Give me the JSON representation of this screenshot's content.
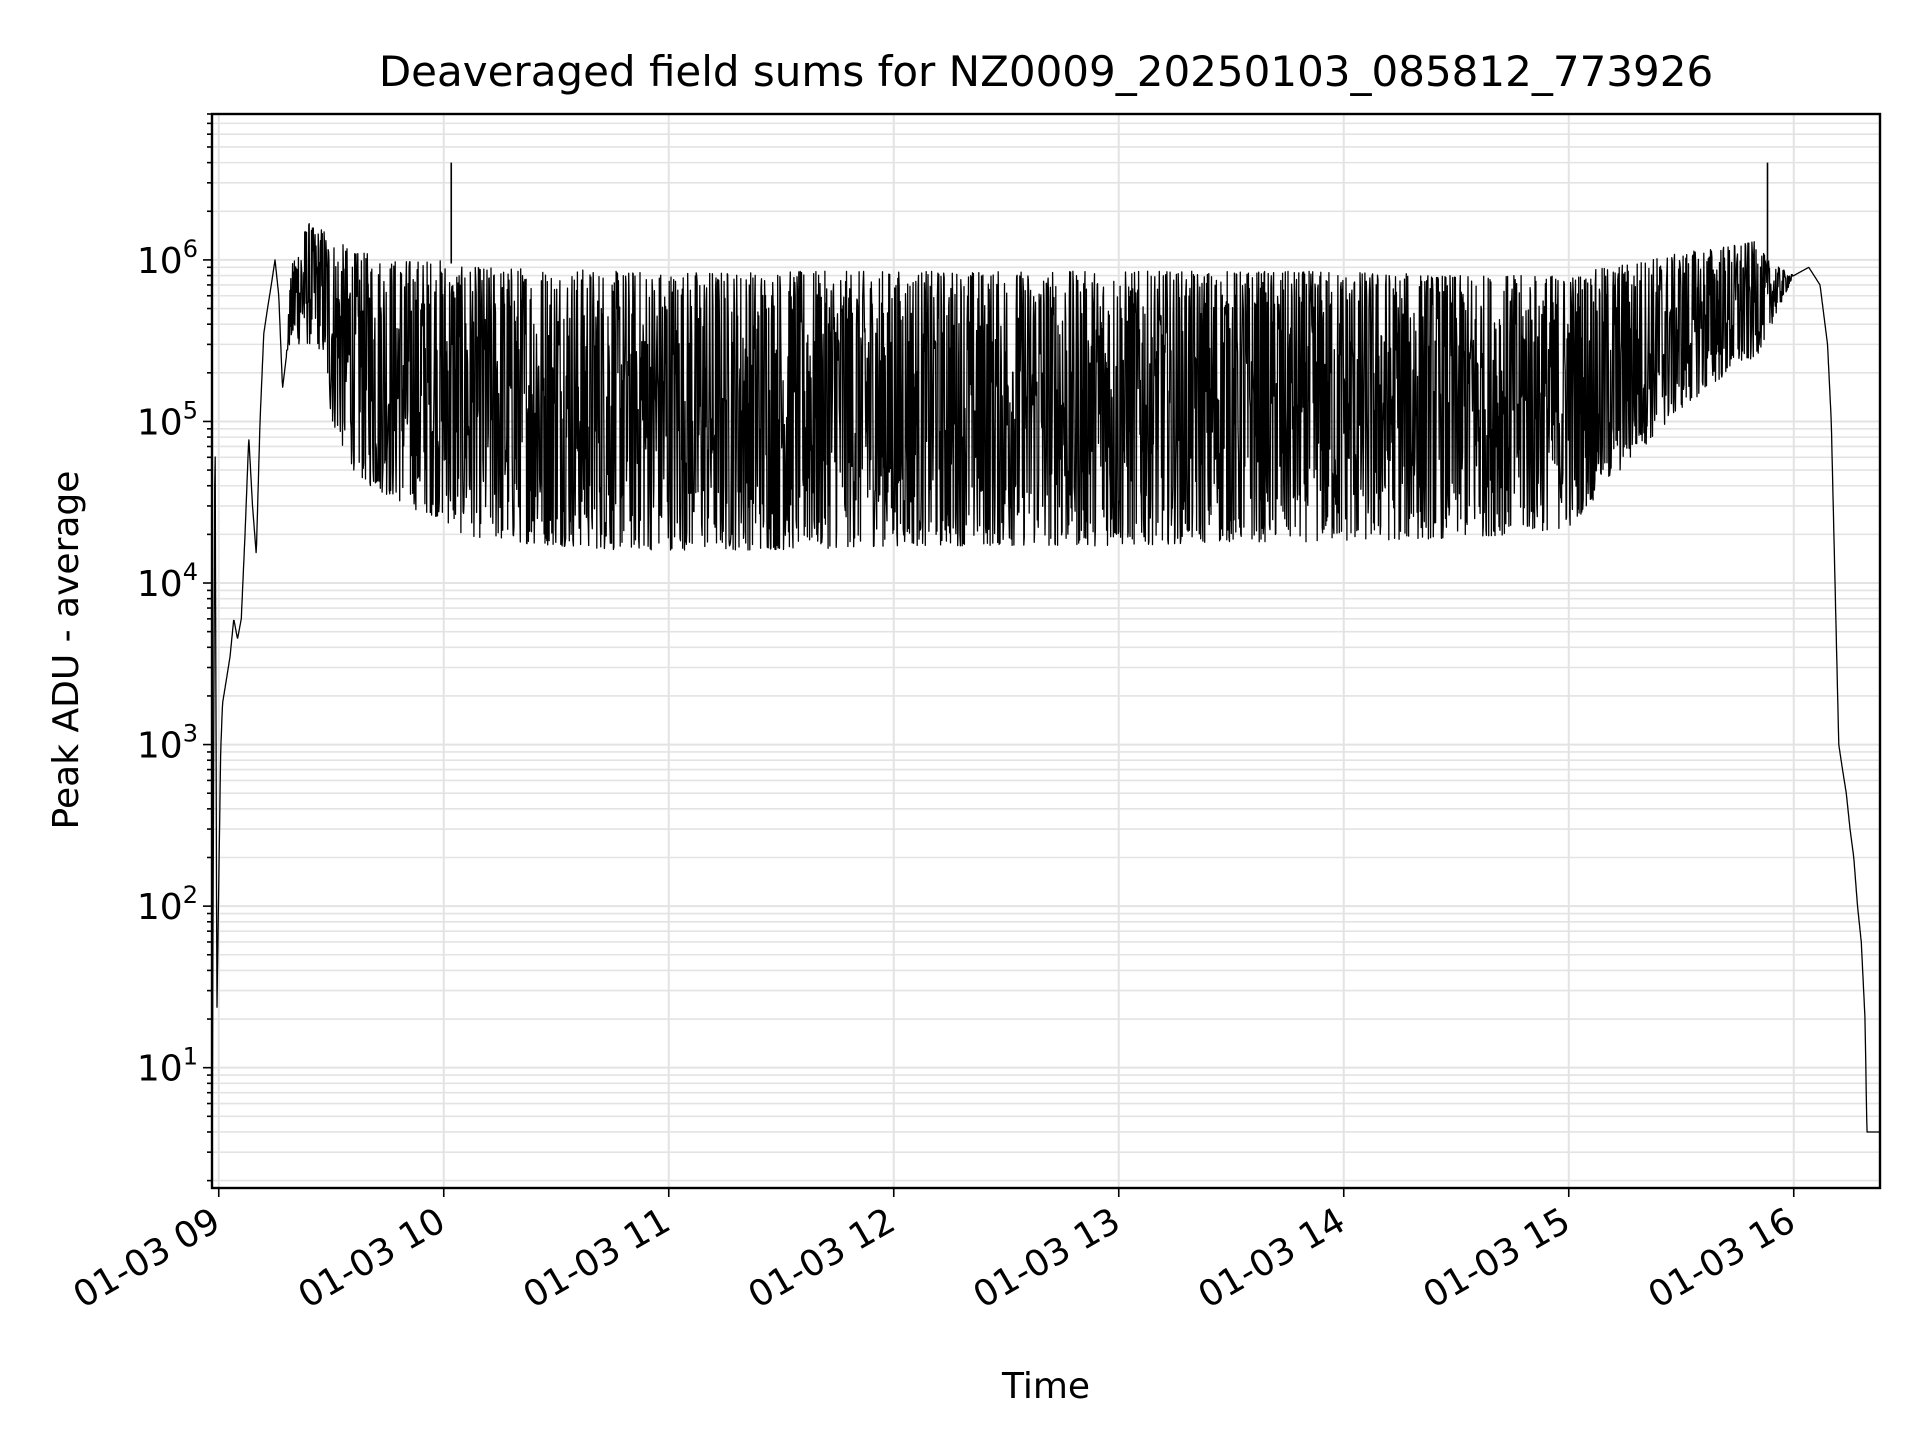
{
  "chart_data": {
    "type": "line",
    "title": "Deaveraged field sums for NZ0009_20250103_085812_773926",
    "xlabel": "Time",
    "ylabel": "Peak ADU - average",
    "yscale": "log",
    "xlim": [
      "2025-01-03 08:58:12",
      "2025-01-03 16:23:00"
    ],
    "ylim": [
      1.8,
      8000000
    ],
    "grid": true,
    "legend": "none",
    "line_color": "#000000",
    "x_ticks": [
      "01-03 09",
      "01-03 10",
      "01-03 11",
      "01-03 12",
      "01-03 13",
      "01-03 14",
      "01-03 15",
      "01-03 16"
    ],
    "x_tick_times": [
      "2025-01-03 09:00",
      "2025-01-03 10:00",
      "2025-01-03 11:00",
      "2025-01-03 12:00",
      "2025-01-03 13:00",
      "2025-01-03 14:00",
      "2025-01-03 15:00",
      "2025-01-03 16:00"
    ],
    "y_ticks": [
      {
        "value": 10,
        "base": "10",
        "exp": "1"
      },
      {
        "value": 100,
        "base": "10",
        "exp": "2"
      },
      {
        "value": 1000,
        "base": "10",
        "exp": "3"
      },
      {
        "value": 10000,
        "base": "10",
        "exp": "4"
      },
      {
        "value": 100000,
        "base": "10",
        "exp": "5"
      },
      {
        "value": 1000000,
        "base": "10",
        "exp": "6"
      }
    ],
    "series": [
      {
        "x": [
          "2025-01-03 08:58:12",
          "2025-01-03 08:59:00",
          "2025-01-03 08:59:30",
          "2025-01-03 09:00:30",
          "2025-01-03 09:01:00",
          "2025-01-03 09:02:00",
          "2025-01-03 09:03:00",
          "2025-01-03 09:04:00",
          "2025-01-03 09:05:00",
          "2025-01-03 09:06:00",
          "2025-01-03 09:07:00",
          "2025-01-03 09:08:00",
          "2025-01-03 09:09:00",
          "2025-01-03 09:10:00",
          "2025-01-03 09:11:00",
          "2025-01-03 09:12:00",
          "2025-01-03 09:13:00",
          "2025-01-03 09:14:00",
          "2025-01-03 09:15:00",
          "2025-01-03 09:16:00",
          "2025-01-03 09:17:00",
          "2025-01-03 09:18:00",
          "2025-01-03 09:19:00",
          "2025-01-03 09:20:00",
          "2025-01-03 09:22:00",
          "2025-01-03 09:24:00",
          "2025-01-03 09:26:00",
          "2025-01-03 09:28:00",
          "2025-01-03 09:30:00",
          "2025-01-03 09:32:00",
          "2025-01-03 09:34:00",
          "2025-01-03 09:36:00",
          "2025-01-03 09:40:00",
          "2025-01-03 09:45:00",
          "2025-01-03 09:50:00",
          "2025-01-03 09:55:00",
          "2025-01-03 10:00:00",
          "2025-01-03 10:02:00",
          "2025-01-03 10:05:00",
          "2025-01-03 10:15:00",
          "2025-01-03 10:30:00",
          "2025-01-03 10:45:00",
          "2025-01-03 11:00:00",
          "2025-01-03 11:30:00",
          "2025-01-03 12:00:00",
          "2025-01-03 12:30:00",
          "2025-01-03 13:00:00",
          "2025-01-03 13:30:00",
          "2025-01-03 14:00:00",
          "2025-01-03 14:30:00",
          "2025-01-03 14:45:00",
          "2025-01-03 15:00:00",
          "2025-01-03 15:10:00",
          "2025-01-03 15:20:00",
          "2025-01-03 15:30:00",
          "2025-01-03 15:40:00",
          "2025-01-03 15:50:00",
          "2025-01-03 15:53:00",
          "2025-01-03 15:56:00",
          "2025-01-03 16:00:00",
          "2025-01-03 16:04:00",
          "2025-01-03 16:07:00",
          "2025-01-03 16:09:00",
          "2025-01-03 16:10:00",
          "2025-01-03 16:11:00",
          "2025-01-03 16:12:00",
          "2025-01-03 16:13:00",
          "2025-01-03 16:14:00",
          "2025-01-03 16:15:00",
          "2025-01-03 16:16:00",
          "2025-01-03 16:17:00",
          "2025-01-03 16:18:00",
          "2025-01-03 16:19:00",
          "2025-01-03 16:19:30",
          "2025-01-03 16:20:00",
          "2025-01-03 16:23:00"
        ],
        "values": [
          2,
          120000,
          22,
          900,
          1800,
          2500,
          3500,
          6000,
          4500,
          6000,
          20000,
          80000,
          30000,
          15000,
          100000,
          350000,
          500000,
          700000,
          1000000,
          600000,
          160000,
          250000,
          400000,
          600000,
          900000,
          1300000,
          1500000,
          1400000,
          90000,
          400000,
          700000,
          900000,
          1000000,
          900000,
          800000,
          700000,
          600000,
          500000,
          400000,
          250000,
          200000,
          150000,
          150000,
          120000,
          110000,
          100000,
          100000,
          100000,
          90000,
          70000,
          60000,
          60000,
          80000,
          130000,
          200000,
          300000,
          400000,
          500000,
          600000,
          800000,
          900000,
          700000,
          300000,
          100000,
          10000,
          1000,
          700,
          500,
          300,
          200,
          100,
          60,
          20,
          4,
          4,
          4
        ],
        "envelope": {
          "lower": [
            2,
            120000,
            22,
            900,
            1800,
            2500,
            3500,
            6000,
            4500,
            6000,
            20000,
            80000,
            30000,
            15000,
            100000,
            350000,
            500000,
            700000,
            1000000,
            600000,
            160000,
            250000,
            300000,
            300000,
            300000,
            300000,
            300000,
            250000,
            100000,
            80000,
            60000,
            50000,
            40000,
            35000,
            30000,
            27000,
            25000,
            22000,
            20000,
            18000,
            17000,
            16000,
            16000,
            16000,
            17000,
            17000,
            17000,
            18000,
            18000,
            19000,
            20000,
            22000,
            40000,
            70000,
            120000,
            180000,
            250000,
            350000,
            500000,
            800000,
            900000,
            700000,
            300000,
            100000,
            10000,
            1000,
            700,
            500,
            300,
            200,
            100,
            60,
            20,
            4,
            4,
            4
          ],
          "upper": [
            2,
            120000,
            22,
            900,
            1800,
            2500,
            3500,
            6000,
            4500,
            6000,
            20000,
            80000,
            30000,
            15000,
            100000,
            350000,
            500000,
            700000,
            1000000,
            600000,
            160000,
            250000,
            700000,
            1100000,
            1400000,
            1700000,
            1500000,
            1600000,
            1300000,
            1300000,
            1200000,
            1100000,
            1100000,
            1000000,
            1000000,
            1000000,
            1000000,
            950000,
            900000,
            900000,
            900000,
            850000,
            850000,
            850000,
            850000,
            850000,
            850000,
            850000,
            850000,
            800000,
            800000,
            800000,
            900000,
            1000000,
            1100000,
            1200000,
            1300000,
            1000000,
            900000,
            800000,
            900000,
            700000,
            300000,
            100000,
            10000,
            1000,
            700,
            500,
            300,
            200,
            100,
            60,
            20,
            4,
            4,
            4
          ]
        }
      }
    ],
    "spikes": [
      {
        "x": "2025-01-03 10:02:00",
        "value": 4000000
      },
      {
        "x": "2025-01-03 15:53:00",
        "value": 4000000
      }
    ]
  }
}
